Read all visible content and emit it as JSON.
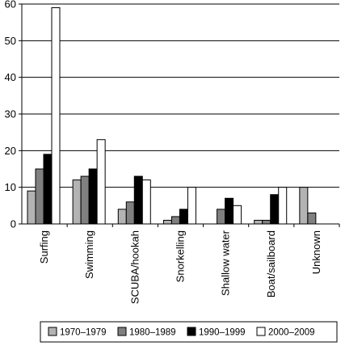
{
  "chart_data": {
    "type": "bar",
    "categories": [
      "Surfing",
      "Swimming",
      "SCUBA/hookah",
      "Snorkelling",
      "Shallow water",
      "Boat/sailboard",
      "Unknown"
    ],
    "series": [
      {
        "name": "1970–1979",
        "color": "#b3b3b3",
        "values": [
          9,
          12,
          4,
          1,
          0,
          1,
          10
        ]
      },
      {
        "name": "1980–1989",
        "color": "#808080",
        "values": [
          15,
          13,
          6,
          2,
          4,
          1,
          3
        ]
      },
      {
        "name": "1990–1999",
        "color": "#000000",
        "values": [
          19,
          15,
          13,
          4,
          7,
          8,
          0
        ]
      },
      {
        "name": "2000–2009",
        "color": "#ffffff",
        "values": [
          59,
          23,
          12,
          10,
          5,
          10,
          0
        ]
      }
    ],
    "ylim": [
      0,
      60
    ],
    "yticks": [
      0,
      10,
      20,
      30,
      40,
      50,
      60
    ],
    "grid": true,
    "legend": "bottom",
    "title": "",
    "xlabel": "",
    "ylabel": ""
  }
}
